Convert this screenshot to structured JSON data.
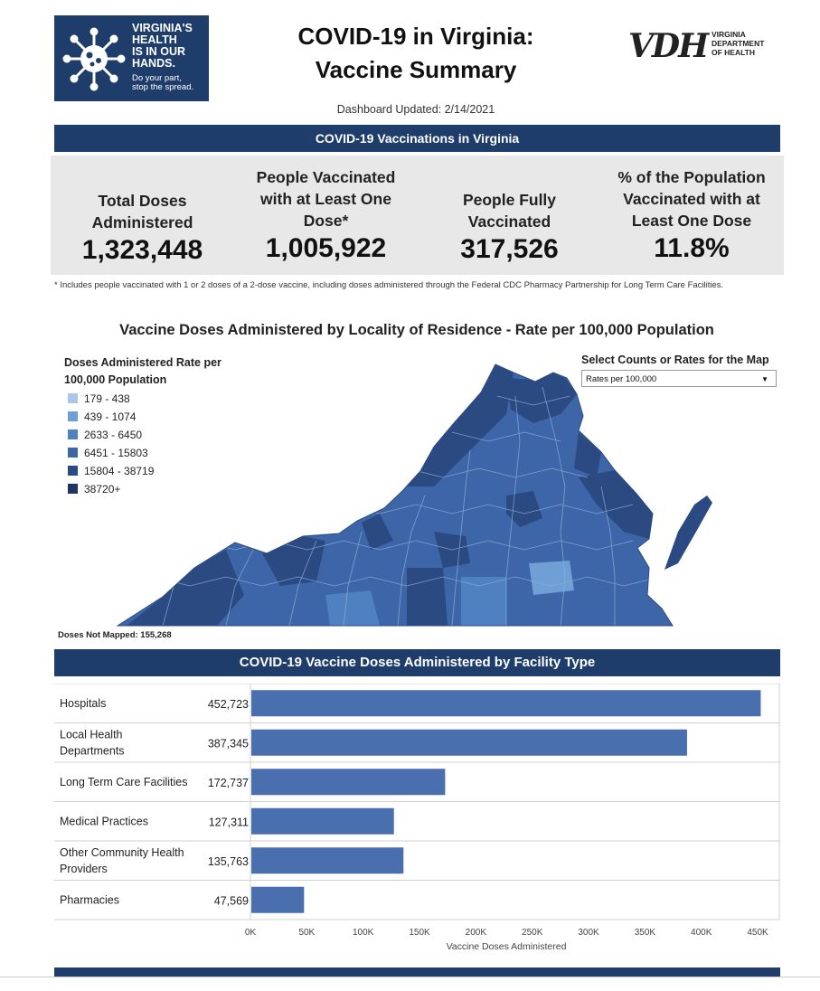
{
  "header": {
    "logo_left": {
      "lines": [
        "VIRGINIA'S",
        "HEALTH",
        "IS IN OUR",
        "HANDS."
      ],
      "sub_lines": [
        "Do your part,",
        "stop the spread."
      ],
      "icon": "virus-icon"
    },
    "title_line1": "COVID-19 in Virginia:",
    "title_line2": "Vaccine Summary",
    "vdh_mark": "VDH",
    "vdh_sub": [
      "VIRGINIA",
      "DEPARTMENT",
      "OF HEALTH"
    ],
    "updated": "Dashboard Updated: 2/14/2021"
  },
  "vaccinations": {
    "banner": "COVID-19 Vaccinations in Virginia",
    "kpis": [
      {
        "label": [
          "Total Doses",
          "Administered"
        ],
        "value": "1,323,448"
      },
      {
        "label": [
          "People Vaccinated",
          "with at Least One",
          "Dose*"
        ],
        "value": "1,005,922"
      },
      {
        "label": [
          "People Fully",
          "Vaccinated"
        ],
        "value": "317,526"
      },
      {
        "label": [
          "% of the Population",
          "Vaccinated with at",
          "Least One Dose"
        ],
        "value": "11.8%"
      }
    ],
    "footnote": "* Includes people vaccinated with 1 or 2 doses of a 2-dose vaccine, including doses administered through the Federal CDC Pharmacy Partnership for Long Term Care Facilities."
  },
  "map": {
    "title": "Vaccine Doses Administered by Locality of Residence - Rate per 100,000 Population",
    "legend_title": [
      "Doses Administered Rate per",
      "100,000 Population"
    ],
    "legend": [
      {
        "label": "179 - 438",
        "color": "#a9c8e8"
      },
      {
        "label": "439 - 1074",
        "color": "#6f9fd4"
      },
      {
        "label": "2633 - 6450",
        "color": "#4f80c0"
      },
      {
        "label": "6451 - 15803",
        "color": "#3c66a8"
      },
      {
        "label": "15804 - 38719",
        "color": "#2b4a82"
      },
      {
        "label": "38720+",
        "color": "#1f3560"
      }
    ],
    "select_label": "Select Counts or Rates for the Map",
    "select_value": "Rates per 100,000",
    "not_mapped": "Doses Not Mapped: 155,268"
  },
  "facility": {
    "banner": "COVID-19 Vaccine Doses Administered by Facility Type"
  },
  "chart_data": {
    "type": "bar",
    "orientation": "horizontal",
    "categories": [
      [
        "Hospitals"
      ],
      [
        "Local Health",
        "Departments"
      ],
      [
        "Long Term Care Facilities"
      ],
      [
        "Medical Practices"
      ],
      [
        "Other Community Health",
        "Providers"
      ],
      [
        "Pharmacies"
      ]
    ],
    "values": [
      452723,
      387345,
      172737,
      127311,
      135763,
      47569
    ],
    "value_labels": [
      "452,723",
      "387,345",
      "172,737",
      "127,311",
      "135,763",
      "47,569"
    ],
    "xlabel": "Vaccine Doses Administered",
    "xlim": [
      0,
      470000
    ],
    "xticks": [
      0,
      50000,
      100000,
      150000,
      200000,
      250000,
      300000,
      350000,
      400000,
      450000
    ],
    "xtick_labels": [
      "0K",
      "50K",
      "100K",
      "150K",
      "200K",
      "250K",
      "300K",
      "350K",
      "400K",
      "450K"
    ],
    "bar_color": "#4a6fae",
    "grid": false
  },
  "colors": {
    "navy": "#1f3d6b",
    "panel": "#e8e8e8",
    "bar": "#4a6fae"
  }
}
